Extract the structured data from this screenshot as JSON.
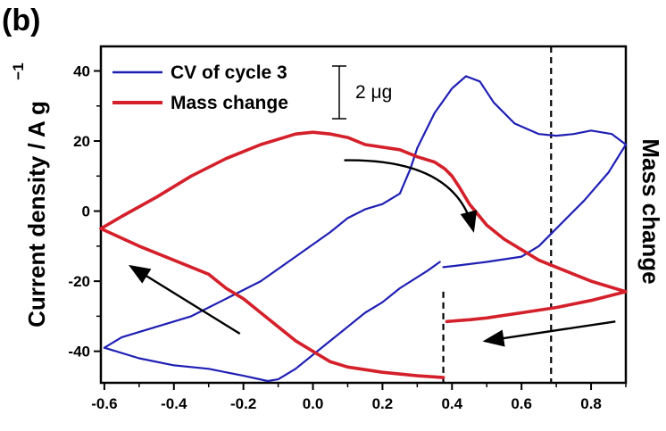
{
  "panel_label": "(b)",
  "chart_data": {
    "type": "line",
    "xlabel": "",
    "ylabel": "Current density / A g",
    "ylabel_superscript": "−1",
    "y2label": "Mass change",
    "xlim": [
      -0.61,
      0.9
    ],
    "ylim": [
      -49,
      47
    ],
    "x_ticks": [
      -0.6,
      -0.4,
      -0.2,
      0.0,
      0.2,
      0.4,
      0.6,
      0.8
    ],
    "x_tick_labels": [
      "-0.6",
      "-0.4",
      "-0.2",
      "0.0",
      "0.2",
      "0.4",
      "0.6",
      "0.8"
    ],
    "y_ticks": [
      -40,
      -20,
      0,
      20,
      40
    ],
    "y_tick_labels": [
      "-40",
      "-20",
      "0",
      "20",
      "40"
    ],
    "grid": false,
    "legend_position": "top-left",
    "scale_bar_label": "2 μg",
    "vertical_dashed_lines": [
      0.375,
      0.685
    ],
    "series": [
      {
        "name": "CV of cycle 3",
        "color": "#1f1fb4",
        "points": [
          [
            -0.6,
            -39
          ],
          [
            -0.55,
            -36
          ],
          [
            -0.45,
            -33
          ],
          [
            -0.35,
            -30
          ],
          [
            -0.25,
            -25
          ],
          [
            -0.15,
            -20
          ],
          [
            -0.05,
            -13
          ],
          [
            0.05,
            -6
          ],
          [
            0.1,
            -2
          ],
          [
            0.15,
            0.5
          ],
          [
            0.2,
            2
          ],
          [
            0.25,
            5
          ],
          [
            0.28,
            12
          ],
          [
            0.3,
            18
          ],
          [
            0.35,
            28
          ],
          [
            0.4,
            35
          ],
          [
            0.44,
            38.5
          ],
          [
            0.48,
            37
          ],
          [
            0.52,
            31
          ],
          [
            0.58,
            25
          ],
          [
            0.65,
            22
          ],
          [
            0.7,
            21.5
          ],
          [
            0.75,
            22
          ],
          [
            0.8,
            23
          ],
          [
            0.86,
            22
          ],
          [
            0.9,
            19
          ],
          [
            0.85,
            11
          ],
          [
            0.78,
            3
          ],
          [
            0.7,
            -5
          ],
          [
            0.65,
            -10
          ],
          [
            0.6,
            -13
          ],
          [
            0.5,
            -14.5
          ],
          [
            0.42,
            -15.5
          ],
          [
            0.375,
            -16
          ],
          null,
          [
            0.365,
            -14.5
          ],
          [
            0.33,
            -17
          ],
          [
            0.25,
            -22
          ],
          [
            0.2,
            -26
          ],
          [
            0.15,
            -29
          ],
          [
            0.1,
            -33
          ],
          [
            0.05,
            -37
          ],
          [
            0.0,
            -41
          ],
          [
            -0.05,
            -45
          ],
          [
            -0.1,
            -48
          ],
          [
            -0.13,
            -48.5
          ],
          [
            -0.2,
            -47
          ],
          [
            -0.3,
            -45
          ],
          [
            -0.4,
            -44
          ],
          [
            -0.5,
            -42
          ],
          [
            -0.6,
            -39
          ]
        ]
      },
      {
        "name": "Mass change",
        "color": "#d4202a",
        "points": [
          [
            -0.61,
            -5
          ],
          [
            -0.55,
            -1.5
          ],
          [
            -0.45,
            4
          ],
          [
            -0.35,
            10
          ],
          [
            -0.25,
            15
          ],
          [
            -0.15,
            19
          ],
          [
            -0.05,
            22
          ],
          [
            0.0,
            22.5
          ],
          [
            0.05,
            22
          ],
          [
            0.1,
            21
          ],
          [
            0.15,
            19
          ],
          [
            0.25,
            17.5
          ],
          [
            0.3,
            15.5
          ],
          [
            0.35,
            14
          ],
          [
            0.38,
            12
          ],
          [
            0.4,
            10
          ],
          [
            0.42,
            7
          ],
          [
            0.45,
            2
          ],
          [
            0.5,
            -4
          ],
          [
            0.55,
            -8
          ],
          [
            0.6,
            -11
          ],
          [
            0.65,
            -14
          ],
          [
            0.7,
            -16
          ],
          [
            0.75,
            -18
          ],
          [
            0.8,
            -20
          ],
          [
            0.85,
            -21.5
          ],
          [
            0.9,
            -23
          ],
          [
            0.8,
            -25.5
          ],
          [
            0.7,
            -27.5
          ],
          [
            0.6,
            -29
          ],
          [
            0.5,
            -30.5
          ],
          [
            0.45,
            -31
          ],
          [
            0.385,
            -31.5
          ],
          null,
          [
            0.375,
            -47.5
          ],
          [
            0.3,
            -47
          ],
          [
            0.2,
            -46
          ],
          [
            0.1,
            -44.5
          ],
          [
            0.05,
            -43
          ],
          [
            0.0,
            -40
          ],
          [
            -0.05,
            -37
          ],
          [
            -0.1,
            -33
          ],
          [
            -0.15,
            -29
          ],
          [
            -0.2,
            -25
          ],
          [
            -0.25,
            -22
          ],
          [
            -0.3,
            -18
          ],
          [
            -0.4,
            -14
          ],
          [
            -0.5,
            -10
          ],
          [
            -0.61,
            -5
          ]
        ]
      }
    ],
    "direction_arrows": [
      {
        "from": [
          0.09,
          14.5
        ],
        "to": [
          0.46,
          -5
        ],
        "curved": true
      },
      {
        "from": [
          -0.21,
          -35
        ],
        "to": [
          -0.52,
          -16
        ]
      },
      {
        "from": [
          0.87,
          -31.5
        ],
        "to": [
          0.5,
          -37
        ]
      }
    ]
  }
}
